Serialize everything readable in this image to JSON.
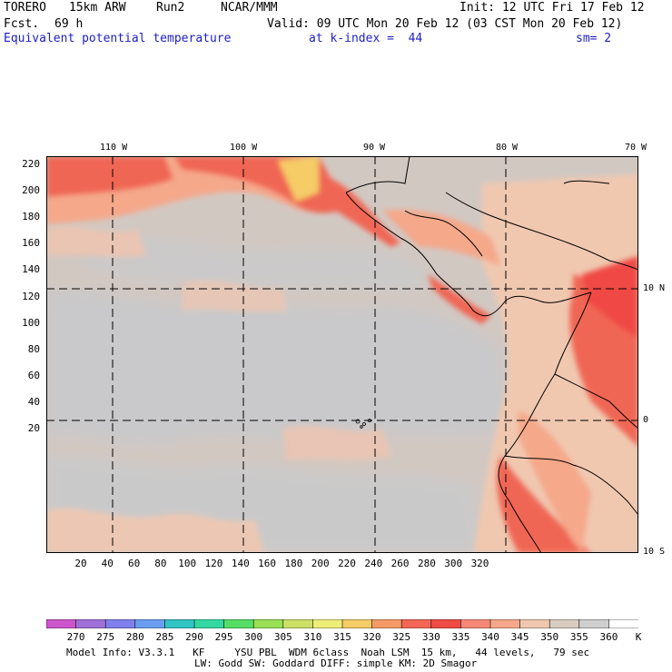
{
  "header": {
    "model": "TORERO",
    "resolution": "15km ARW",
    "run": "Run2",
    "org": "NCAR/MMM",
    "init": "Init: 12 UTC Fri 17 Feb 12",
    "fcst_label": "Fcst.",
    "fcst_value": "69 h",
    "valid": "Valid: 09 UTC Mon 20 Feb 12 (03 CST Mon 20 Feb 12)",
    "field": "Equivalent potential temperature",
    "level": "at k-index =  44",
    "smoothing": "sm= 2"
  },
  "axes": {
    "y_ticks": [
      "220",
      "200",
      "180",
      "160",
      "140",
      "120",
      "100",
      "80",
      "60",
      "40",
      "20"
    ],
    "x_ticks": [
      "20",
      "40",
      "60",
      "80",
      "100",
      "120",
      "140",
      "160",
      "180",
      "200",
      "220",
      "240",
      "260",
      "280",
      "300",
      "320"
    ],
    "lon_labels": [
      "110 W",
      "100 W",
      "90 W",
      "80 W",
      "70 W"
    ],
    "lat_labels": [
      "10 N",
      "0",
      "10 S"
    ]
  },
  "colorbar": {
    "labels": [
      "270",
      "275",
      "280",
      "285",
      "290",
      "295",
      "300",
      "305",
      "310",
      "315",
      "320",
      "325",
      "330",
      "335",
      "340",
      "345",
      "350",
      "355",
      "360"
    ],
    "unit": "K",
    "colors": [
      "#cc55cc",
      "#a070d8",
      "#7f7fee",
      "#6a9ef0",
      "#33c4c4",
      "#33d9a0",
      "#55dd66",
      "#99e055",
      "#cce066",
      "#eeee77",
      "#f5cc66",
      "#f59a66",
      "#f56655",
      "#f04a44",
      "#f58877",
      "#f5a88a",
      "#f0c8b0",
      "#d8cbc0",
      "#cfcfcf",
      "#ffffff"
    ]
  },
  "footer": {
    "line1": "Model Info: V3.3.1   KF     YSU PBL  WDM 6class  Noah LSM  15 km,   44 levels,   79 sec",
    "line2": "LW: Godd SW: Goddard DIFF: simple KM: 2D Smagor"
  },
  "map_colors": {
    "background": "#d2c8c2",
    "ocean_cool": "#c9c9cb",
    "warm_light": "#f0c8b0",
    "warm_mid": "#f5a88a",
    "warm_high": "#f06655",
    "warm_peak": "#f5cc66",
    "land_line": "#000000"
  }
}
